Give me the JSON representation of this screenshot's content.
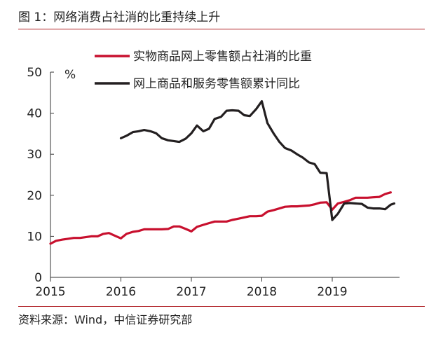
{
  "figure": {
    "title": "图 1：网络消费占社消的比重持续上升",
    "source": "资料来源：Wind，中信证券研究部"
  },
  "chart_data": {
    "type": "line",
    "unit_label": "%",
    "ylim": [
      0,
      50
    ],
    "yticks": [
      0,
      10,
      20,
      30,
      40,
      50
    ],
    "xlim": [
      2015,
      2019.9
    ],
    "xticks": [
      2015,
      2016,
      2017,
      2018,
      2019
    ],
    "grid": false,
    "legend_position": "top",
    "series": [
      {
        "name": "实物商品网上零售额占社消的比重",
        "color": "#c8102e",
        "points": [
          [
            2015.0,
            8.2
          ],
          [
            2015.08,
            8.9
          ],
          [
            2015.17,
            9.2
          ],
          [
            2015.25,
            9.4
          ],
          [
            2015.33,
            9.6
          ],
          [
            2015.42,
            9.6
          ],
          [
            2015.5,
            9.8
          ],
          [
            2015.58,
            10.0
          ],
          [
            2015.67,
            10.0
          ],
          [
            2015.75,
            10.6
          ],
          [
            2015.83,
            10.8
          ],
          [
            2015.92,
            10.1
          ],
          [
            2016.0,
            9.5
          ],
          [
            2016.08,
            10.6
          ],
          [
            2016.17,
            11.1
          ],
          [
            2016.25,
            11.3
          ],
          [
            2016.33,
            11.7
          ],
          [
            2016.42,
            11.7
          ],
          [
            2016.5,
            11.7
          ],
          [
            2016.58,
            11.7
          ],
          [
            2016.67,
            11.8
          ],
          [
            2016.75,
            12.4
          ],
          [
            2016.83,
            12.4
          ],
          [
            2016.92,
            11.8
          ],
          [
            2017.0,
            11.2
          ],
          [
            2017.08,
            12.3
          ],
          [
            2017.17,
            12.8
          ],
          [
            2017.25,
            13.2
          ],
          [
            2017.33,
            13.6
          ],
          [
            2017.42,
            13.6
          ],
          [
            2017.5,
            13.6
          ],
          [
            2017.58,
            14.0
          ],
          [
            2017.67,
            14.3
          ],
          [
            2017.75,
            14.6
          ],
          [
            2017.83,
            14.9
          ],
          [
            2017.92,
            14.9
          ],
          [
            2018.0,
            15.0
          ],
          [
            2018.08,
            16.0
          ],
          [
            2018.17,
            16.4
          ],
          [
            2018.25,
            16.8
          ],
          [
            2018.33,
            17.2
          ],
          [
            2018.42,
            17.3
          ],
          [
            2018.5,
            17.3
          ],
          [
            2018.58,
            17.4
          ],
          [
            2018.67,
            17.5
          ],
          [
            2018.75,
            17.8
          ],
          [
            2018.83,
            18.2
          ],
          [
            2018.92,
            18.3
          ],
          [
            2019.0,
            16.5
          ],
          [
            2019.08,
            18.0
          ],
          [
            2019.17,
            18.4
          ],
          [
            2019.25,
            18.8
          ],
          [
            2019.33,
            19.4
          ],
          [
            2019.42,
            19.4
          ],
          [
            2019.5,
            19.4
          ],
          [
            2019.58,
            19.5
          ],
          [
            2019.67,
            19.6
          ],
          [
            2019.75,
            20.3
          ],
          [
            2019.83,
            20.7
          ]
        ]
      },
      {
        "name": "网上商品和服务零售额累计同比",
        "color": "#231f20",
        "points": [
          [
            2016.0,
            33.9
          ],
          [
            2016.08,
            34.5
          ],
          [
            2016.17,
            35.4
          ],
          [
            2016.25,
            35.6
          ],
          [
            2016.33,
            35.9
          ],
          [
            2016.42,
            35.6
          ],
          [
            2016.5,
            35.1
          ],
          [
            2016.58,
            33.9
          ],
          [
            2016.67,
            33.4
          ],
          [
            2016.75,
            33.2
          ],
          [
            2016.83,
            33.0
          ],
          [
            2016.92,
            33.8
          ],
          [
            2017.0,
            35.1
          ],
          [
            2017.08,
            37.0
          ],
          [
            2017.17,
            35.6
          ],
          [
            2017.25,
            36.2
          ],
          [
            2017.33,
            38.6
          ],
          [
            2017.42,
            39.1
          ],
          [
            2017.5,
            40.6
          ],
          [
            2017.58,
            40.7
          ],
          [
            2017.67,
            40.6
          ],
          [
            2017.75,
            39.5
          ],
          [
            2017.83,
            39.3
          ],
          [
            2017.92,
            41.0
          ],
          [
            2018.0,
            42.9
          ],
          [
            2018.08,
            37.6
          ],
          [
            2018.17,
            35.0
          ],
          [
            2018.25,
            33.0
          ],
          [
            2018.33,
            31.5
          ],
          [
            2018.42,
            30.9
          ],
          [
            2018.5,
            30.0
          ],
          [
            2018.58,
            29.2
          ],
          [
            2018.67,
            28.0
          ],
          [
            2018.75,
            27.6
          ],
          [
            2018.83,
            25.5
          ],
          [
            2018.92,
            25.4
          ],
          [
            2019.0,
            14.0
          ],
          [
            2019.08,
            15.5
          ],
          [
            2019.17,
            18.0
          ],
          [
            2019.25,
            18.1
          ],
          [
            2019.33,
            18.0
          ],
          [
            2019.42,
            17.9
          ],
          [
            2019.5,
            17.0
          ],
          [
            2019.58,
            16.8
          ],
          [
            2019.67,
            16.8
          ],
          [
            2019.75,
            16.6
          ],
          [
            2019.83,
            17.7
          ],
          [
            2019.88,
            18.0
          ]
        ]
      }
    ]
  }
}
